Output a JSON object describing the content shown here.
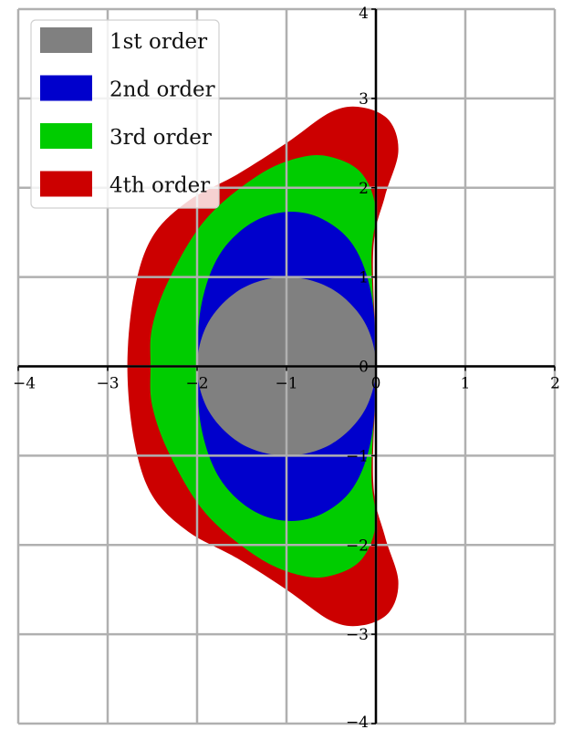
{
  "chart_data": {
    "type": "area",
    "title": "",
    "xlabel": "",
    "ylabel": "",
    "xlim": [
      -4,
      2
    ],
    "ylim": [
      -4,
      4
    ],
    "xticks": [
      "−4",
      "−3",
      "−2",
      "−1",
      "0",
      "1",
      "2"
    ],
    "yticks": [
      "−4",
      "−3",
      "−2",
      "−1",
      "0",
      "1",
      "2",
      "3",
      "4"
    ],
    "grid": true,
    "legend_position": "top-left",
    "series": [
      {
        "name": "1st order",
        "color": "#808080",
        "boundary": [
          [
            0,
            0
          ],
          [
            -0.13,
            0.5
          ],
          [
            -0.5,
            0.87
          ],
          [
            -1,
            1
          ],
          [
            -1.5,
            0.87
          ],
          [
            -1.87,
            0.5
          ],
          [
            -2,
            0
          ],
          [
            -1.87,
            -0.5
          ],
          [
            -1.5,
            -0.87
          ],
          [
            -1,
            -1
          ],
          [
            -0.5,
            -0.87
          ],
          [
            -0.13,
            -0.5
          ]
        ]
      },
      {
        "name": "2nd order",
        "color": "#0000cc",
        "boundary": [
          [
            0,
            0
          ],
          [
            -0.05,
            0.8
          ],
          [
            -0.25,
            1.35
          ],
          [
            -0.6,
            1.65
          ],
          [
            -1,
            1.73
          ],
          [
            -1.4,
            1.6
          ],
          [
            -1.75,
            1.25
          ],
          [
            -1.95,
            0.7
          ],
          [
            -2,
            0
          ],
          [
            -1.95,
            -0.7
          ],
          [
            -1.75,
            -1.25
          ],
          [
            -1.4,
            -1.6
          ],
          [
            -1,
            -1.73
          ],
          [
            -0.6,
            -1.65
          ],
          [
            -0.25,
            -1.35
          ],
          [
            -0.05,
            -0.8
          ]
        ]
      },
      {
        "name": "3rd order",
        "color": "#00cc00",
        "boundary": [
          [
            0,
            0
          ],
          [
            -0.05,
            1.2
          ],
          [
            0,
            1.75
          ],
          [
            -0.15,
            2.15
          ],
          [
            -0.45,
            2.33
          ],
          [
            -0.8,
            2.35
          ],
          [
            -1.3,
            2.15
          ],
          [
            -1.9,
            1.65
          ],
          [
            -2.3,
            1.0
          ],
          [
            -2.5,
            0.45
          ],
          [
            -2.52,
            0
          ],
          [
            -2.5,
            -0.45
          ],
          [
            -2.3,
            -1.0
          ],
          [
            -1.9,
            -1.65
          ],
          [
            -1.3,
            -2.15
          ],
          [
            -0.8,
            -2.35
          ],
          [
            -0.45,
            -2.33
          ],
          [
            -0.15,
            -2.15
          ],
          [
            0,
            -1.75
          ],
          [
            -0.05,
            -1.2
          ]
        ]
      },
      {
        "name": "4th order",
        "color": "#cc0000",
        "boundary": [
          [
            0,
            0
          ],
          [
            -0.03,
            1.3
          ],
          [
            0.1,
            1.9
          ],
          [
            0.25,
            2.4
          ],
          [
            0.15,
            2.75
          ],
          [
            -0.15,
            2.9
          ],
          [
            -0.5,
            2.85
          ],
          [
            -1.0,
            2.5
          ],
          [
            -1.55,
            2.15
          ],
          [
            -2.1,
            1.85
          ],
          [
            -2.5,
            1.45
          ],
          [
            -2.7,
            0.85
          ],
          [
            -2.78,
            0
          ],
          [
            -2.7,
            -0.85
          ],
          [
            -2.5,
            -1.45
          ],
          [
            -2.1,
            -1.85
          ],
          [
            -1.55,
            -2.15
          ],
          [
            -1.0,
            -2.5
          ],
          [
            -0.5,
            -2.85
          ],
          [
            -0.15,
            -2.9
          ],
          [
            0.15,
            -2.75
          ],
          [
            0.25,
            -2.4
          ],
          [
            0.1,
            -1.9
          ],
          [
            -0.03,
            -1.3
          ]
        ]
      }
    ]
  }
}
